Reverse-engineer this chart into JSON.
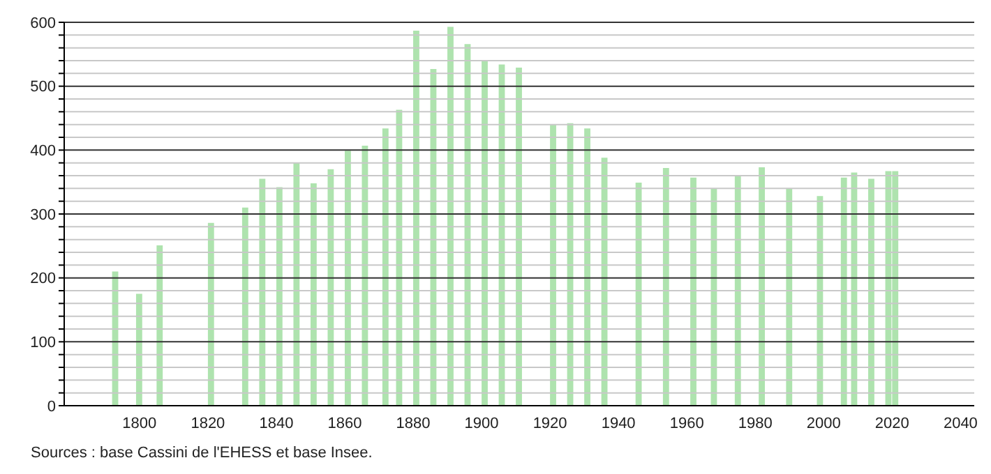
{
  "chart_data": {
    "type": "bar",
    "x": [
      1793,
      1800,
      1806,
      1821,
      1831,
      1836,
      1841,
      1846,
      1851,
      1856,
      1861,
      1866,
      1872,
      1876,
      1881,
      1886,
      1891,
      1896,
      1901,
      1906,
      1911,
      1921,
      1926,
      1931,
      1936,
      1946,
      1954,
      1962,
      1968,
      1975,
      1982,
      1990,
      1999,
      2006,
      2009,
      2014,
      2019,
      2021
    ],
    "values": [
      210,
      175,
      251,
      286,
      310,
      355,
      342,
      380,
      348,
      370,
      399,
      407,
      434,
      463,
      587,
      527,
      593,
      566,
      539,
      534,
      529,
      440,
      442,
      434,
      388,
      349,
      372,
      357,
      340,
      361,
      373,
      340,
      328,
      357,
      365,
      355,
      367,
      367
    ],
    "color": "#aee3ae",
    "xlim": [
      1778,
      2044
    ],
    "xticks": [
      1800,
      1820,
      1840,
      1860,
      1880,
      1900,
      1920,
      1940,
      1960,
      1980,
      2000,
      2020,
      2040
    ],
    "ylim": [
      0,
      600
    ],
    "yticks": [
      0,
      {
        "value": 20,
        "label": null
      },
      {
        "value": 40,
        "label": null
      },
      {
        "value": 60,
        "label": null
      },
      {
        "value": 80,
        "label": null
      },
      100,
      {
        "value": 120,
        "label": null
      },
      {
        "value": 140,
        "label": null
      },
      {
        "value": 160,
        "label": null
      },
      {
        "value": 180,
        "label": null
      },
      200,
      {
        "value": 220,
        "label": null
      },
      {
        "value": 240,
        "label": null
      },
      {
        "value": 260,
        "label": null
      },
      {
        "value": 280,
        "label": null
      },
      300,
      {
        "value": 320,
        "label": null
      },
      {
        "value": 340,
        "label": null
      },
      {
        "value": 360,
        "label": null
      },
      {
        "value": 380,
        "label": null
      },
      400,
      {
        "value": 420,
        "label": null
      },
      {
        "value": 440,
        "label": null
      },
      {
        "value": 460,
        "label": null
      },
      {
        "value": 480,
        "label": null
      },
      500,
      {
        "value": 520,
        "label": null
      },
      {
        "value": 540,
        "label": null
      },
      {
        "value": 560,
        "label": null
      },
      {
        "value": 580,
        "label": null
      },
      600
    ],
    "grid": "y",
    "annotations": [
      "Sources : base Cassini de l'EHESS et base Insee."
    ]
  }
}
